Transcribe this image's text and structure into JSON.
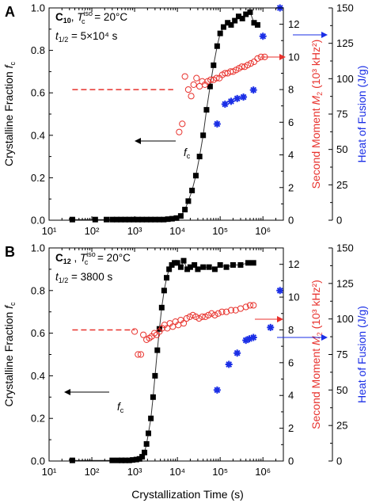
{
  "figure": {
    "xlabel": "Crystallization Time (s)",
    "colors": {
      "fc": "#000000",
      "m2": "#e8322d",
      "heat": "#1a2ee6",
      "fit": "#333333",
      "arrow_red": "#e8322d",
      "arrow_blue": "#1a2ee6"
    }
  },
  "chart_data": [
    {
      "type": "scatter",
      "panel_label": "A",
      "x_scale": "log",
      "xlim": [
        10,
        3000000
      ],
      "x_ticks": [
        "10¹",
        "10²",
        "10³",
        "10⁴",
        "10⁵",
        "10⁶"
      ],
      "annotation": {
        "compound": "C",
        "compound_sub": "10",
        "temp_prefix": ", ",
        "temp_T": "T",
        "temp_sub": "c",
        "temp_sup": "iso",
        "temp_value": " = 20°C",
        "half_t": "t",
        "half_sub": "1/2",
        "half_value": " = 5×10⁴ s"
      },
      "fc_label": "f",
      "fc_label_sub": "c",
      "left_axis": {
        "label": "Crystalline Fraction ",
        "label_italic": "f",
        "label_sub": "c",
        "ylim": [
          0,
          1.0
        ],
        "ticks": [
          "0.0",
          "0.2",
          "0.4",
          "0.6",
          "0.8",
          "1.0"
        ]
      },
      "right_axis_1": {
        "label": "Second Moment ",
        "label_italic": "M",
        "label_sub": "2",
        "label_unit": " (10³ kHz²)",
        "ylim": [
          0,
          13
        ],
        "ticks": [
          "0",
          "2",
          "4",
          "6",
          "8",
          "10",
          "12"
        ]
      },
      "right_axis_2": {
        "label": "Heat of Fusion (J/g)",
        "ylim": [
          0,
          150
        ],
        "ticks": [
          "0",
          "25",
          "50",
          "75",
          "100",
          "125",
          "150"
        ]
      },
      "series": [
        {
          "name": "f_c",
          "marker": "filled-square",
          "x": [
            35,
            120,
            220,
            300,
            380,
            480,
            600,
            750,
            950,
            1200,
            1500,
            1900,
            2400,
            3000,
            3800,
            4800,
            6000,
            7500,
            9500,
            12000,
            15000,
            18000,
            22000,
            27000,
            33000,
            40000,
            48000,
            58000,
            70000,
            85000,
            100000,
            120000,
            150000,
            180000,
            220000,
            270000,
            330000,
            400000,
            500000,
            620000,
            750000
          ],
          "y": [
            0.003,
            0.003,
            0.003,
            0.003,
            0.003,
            0.003,
            0.003,
            0.003,
            0.003,
            0.003,
            0.003,
            0.003,
            0.003,
            0.003,
            0.003,
            0.003,
            0.005,
            0.007,
            0.01,
            0.02,
            0.05,
            0.09,
            0.14,
            0.21,
            0.3,
            0.4,
            0.52,
            0.63,
            0.73,
            0.82,
            0.88,
            0.91,
            0.93,
            0.92,
            0.94,
            0.96,
            0.95,
            0.97,
            0.98,
            0.93,
            0.92
          ]
        },
        {
          "name": "M2",
          "marker": "open-circle",
          "axis": "right_axis_1",
          "x": [
            11000,
            13000,
            15000,
            18000,
            21000,
            24000,
            28000,
            33000,
            38000,
            44000,
            51000,
            60000,
            70000,
            82000,
            96000,
            112000,
            130000,
            150000,
            175000,
            200000,
            235000,
            275000,
            320000,
            375000,
            440000,
            520000,
            620000,
            750000,
            900000,
            1100000
          ],
          "y": [
            5.4,
            5.9,
            8.8,
            8.0,
            7.6,
            8.3,
            8.7,
            8.2,
            8.5,
            8.3,
            8.5,
            8.6,
            8.6,
            8.7,
            8.7,
            8.9,
            9.0,
            9.0,
            9.1,
            9.1,
            9.2,
            9.3,
            9.4,
            9.4,
            9.5,
            9.6,
            9.7,
            9.9,
            10.0,
            10.0
          ]
        },
        {
          "name": "Heat",
          "marker": "asterisk",
          "axis": "right_axis_2",
          "x": [
            85000,
            130000,
            180000,
            250000,
            350000,
            600000,
            1000000,
            2500000
          ],
          "y": [
            68,
            82,
            84,
            86,
            87,
            92,
            130,
            150
          ]
        },
        {
          "name": "M2 baseline",
          "style": "dashed",
          "axis": "right_axis_1",
          "x": [
            35,
            8000
          ],
          "y": [
            8.0,
            8.0
          ]
        }
      ]
    },
    {
      "type": "scatter",
      "panel_label": "B",
      "x_scale": "log",
      "xlim": [
        10,
        3000000
      ],
      "x_ticks": [
        "10¹",
        "10²",
        "10³",
        "10⁴",
        "10⁵",
        "10⁶"
      ],
      "annotation": {
        "compound": "C",
        "compound_sub": "12",
        "temp_prefix": " , ",
        "temp_T": "T",
        "temp_sub": "c",
        "temp_sup": "iso",
        "temp_value": " = 20°C",
        "half_t": "t",
        "half_sub": "1/2",
        "half_value": " = 3800 s"
      },
      "fc_label": "f",
      "fc_label_sub": "c",
      "left_axis": {
        "label": "Crystalline Fraction ",
        "label_italic": "f",
        "label_sub": "c",
        "ylim": [
          0,
          1.0
        ],
        "ticks": [
          "0.0",
          "0.2",
          "0.4",
          "0.6",
          "0.8",
          "1.0"
        ]
      },
      "right_axis_1": {
        "label": "Second Moment ",
        "label_italic": "M",
        "label_sub": "2",
        "label_unit": " (10³ kHz²)",
        "ylim": [
          0,
          13
        ],
        "ticks": [
          "0",
          "2",
          "4",
          "6",
          "8",
          "10",
          "12"
        ]
      },
      "right_axis_2": {
        "label": "Heat of Fusion (J/g)",
        "ylim": [
          0,
          150
        ],
        "ticks": [
          "0",
          "25",
          "50",
          "75",
          "100",
          "125",
          "150"
        ]
      },
      "series": [
        {
          "name": "f_c",
          "marker": "filled-square",
          "x": [
            35,
            300,
            400,
            500,
            600,
            750,
            900,
            1100,
            1300,
            1500,
            1700,
            1900,
            2100,
            2400,
            2700,
            3000,
            3400,
            3800,
            4300,
            4900,
            5600,
            6400,
            7400,
            8600,
            10000,
            12000,
            14000,
            17000,
            20000,
            25000,
            30000,
            40000,
            55000,
            75000,
            100000,
            140000,
            200000,
            300000,
            450000,
            600000
          ],
          "y": [
            0.003,
            0.003,
            0.003,
            0.003,
            0.003,
            0.003,
            0.005,
            0.007,
            0.01,
            0.02,
            0.04,
            0.08,
            0.13,
            0.2,
            0.3,
            0.4,
            0.52,
            0.62,
            0.72,
            0.8,
            0.86,
            0.9,
            0.92,
            0.93,
            0.93,
            0.91,
            0.94,
            0.9,
            0.91,
            0.92,
            0.9,
            0.91,
            0.91,
            0.9,
            0.92,
            0.91,
            0.92,
            0.92,
            0.93,
            0.93
          ]
        },
        {
          "name": "M2",
          "marker": "open-circle",
          "axis": "right_axis_1",
          "x": [
            1000,
            1200,
            1400,
            1600,
            1900,
            2200,
            2500,
            2900,
            3300,
            3800,
            4400,
            5000,
            5800,
            6700,
            7800,
            9000,
            10500,
            12000,
            14000,
            16500,
            19500,
            23000,
            27000,
            32000,
            38000,
            45000,
            53000,
            63000,
            75000,
            90000,
            110000,
            140000,
            180000,
            230000,
            300000,
            400000,
            500000,
            600000
          ],
          "y": [
            7.9,
            6.5,
            6.5,
            7.7,
            7.4,
            7.5,
            7.6,
            7.8,
            7.7,
            7.9,
            8.1,
            8.3,
            8.1,
            8.4,
            8.2,
            8.5,
            8.3,
            8.6,
            8.4,
            8.7,
            8.8,
            8.9,
            8.8,
            8.7,
            8.8,
            8.8,
            8.9,
            9.0,
            8.9,
            9.0,
            9.1,
            9.1,
            9.2,
            9.2,
            9.3,
            9.4,
            9.5,
            9.5
          ]
        },
        {
          "name": "Heat",
          "marker": "asterisk",
          "axis": "right_axis_2",
          "x": [
            85000,
            160000,
            250000,
            400000,
            480000,
            600000,
            1500000,
            2500000
          ],
          "y": [
            50,
            68,
            76,
            85,
            86,
            87,
            94,
            120
          ]
        },
        {
          "name": "M2 baseline",
          "style": "dashed",
          "axis": "right_axis_1",
          "x": [
            35,
            1000
          ],
          "y": [
            8.0,
            8.0
          ]
        }
      ]
    }
  ]
}
